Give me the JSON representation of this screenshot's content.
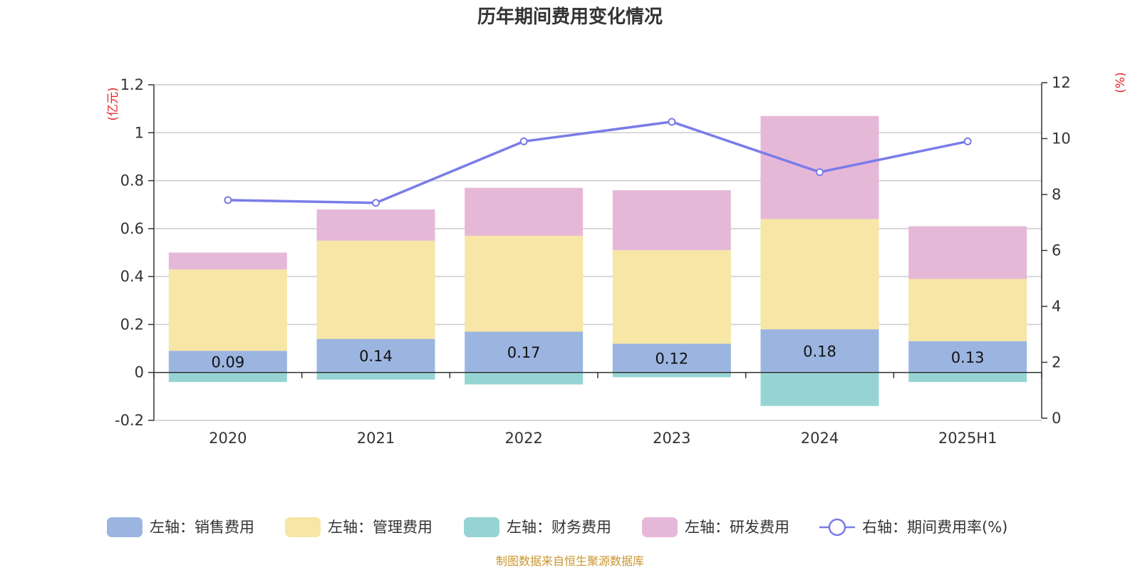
{
  "chart_data": {
    "type": "bar",
    "title": "历年期间费用变化情况",
    "categories": [
      "2020",
      "2021",
      "2022",
      "2023",
      "2024",
      "2025H1"
    ],
    "stacked": true,
    "left_axis": {
      "unit_label": "(亿元)",
      "ylim": [
        -0.2,
        1.2
      ],
      "ticks": [
        "-0.2",
        "0",
        "0.2",
        "0.4",
        "0.6",
        "0.8",
        "1",
        "1.2"
      ]
    },
    "right_axis": {
      "unit_label": "(%)",
      "ylim": [
        0,
        12
      ],
      "ticks": [
        "0",
        "2",
        "4",
        "6",
        "8",
        "10",
        "12"
      ]
    },
    "series": [
      {
        "name": "左轴：销售费用",
        "type": "bar",
        "axis": "left",
        "color": "#9bb5e0",
        "values": [
          0.09,
          0.14,
          0.17,
          0.12,
          0.18,
          0.13
        ],
        "show_labels": true,
        "labels": [
          "0.09",
          "0.14",
          "0.17",
          "0.12",
          "0.18",
          "0.13"
        ]
      },
      {
        "name": "左轴：管理费用",
        "type": "bar",
        "axis": "left",
        "color": "#f7e6a6",
        "values": [
          0.34,
          0.41,
          0.4,
          0.39,
          0.46,
          0.26
        ],
        "show_labels": false
      },
      {
        "name": "左轴：财务费用",
        "type": "bar",
        "axis": "left",
        "color": "#96d4d4",
        "values": [
          -0.04,
          -0.03,
          -0.05,
          -0.02,
          -0.14,
          -0.04
        ],
        "show_labels": false
      },
      {
        "name": "左轴：研发费用",
        "type": "bar",
        "axis": "left",
        "color": "#e6b8d8",
        "values": [
          0.07,
          0.13,
          0.2,
          0.25,
          0.43,
          0.22
        ],
        "show_labels": false
      },
      {
        "name": "右轴：期间费用率(%)",
        "type": "line",
        "axis": "right",
        "color": "#7a7ce8",
        "values": [
          7.8,
          7.7,
          9.9,
          10.6,
          8.8,
          9.9
        ]
      }
    ],
    "grid": true,
    "legend_position": "bottom"
  },
  "footer": {
    "source": "制图数据来自恒生聚源数据库"
  }
}
